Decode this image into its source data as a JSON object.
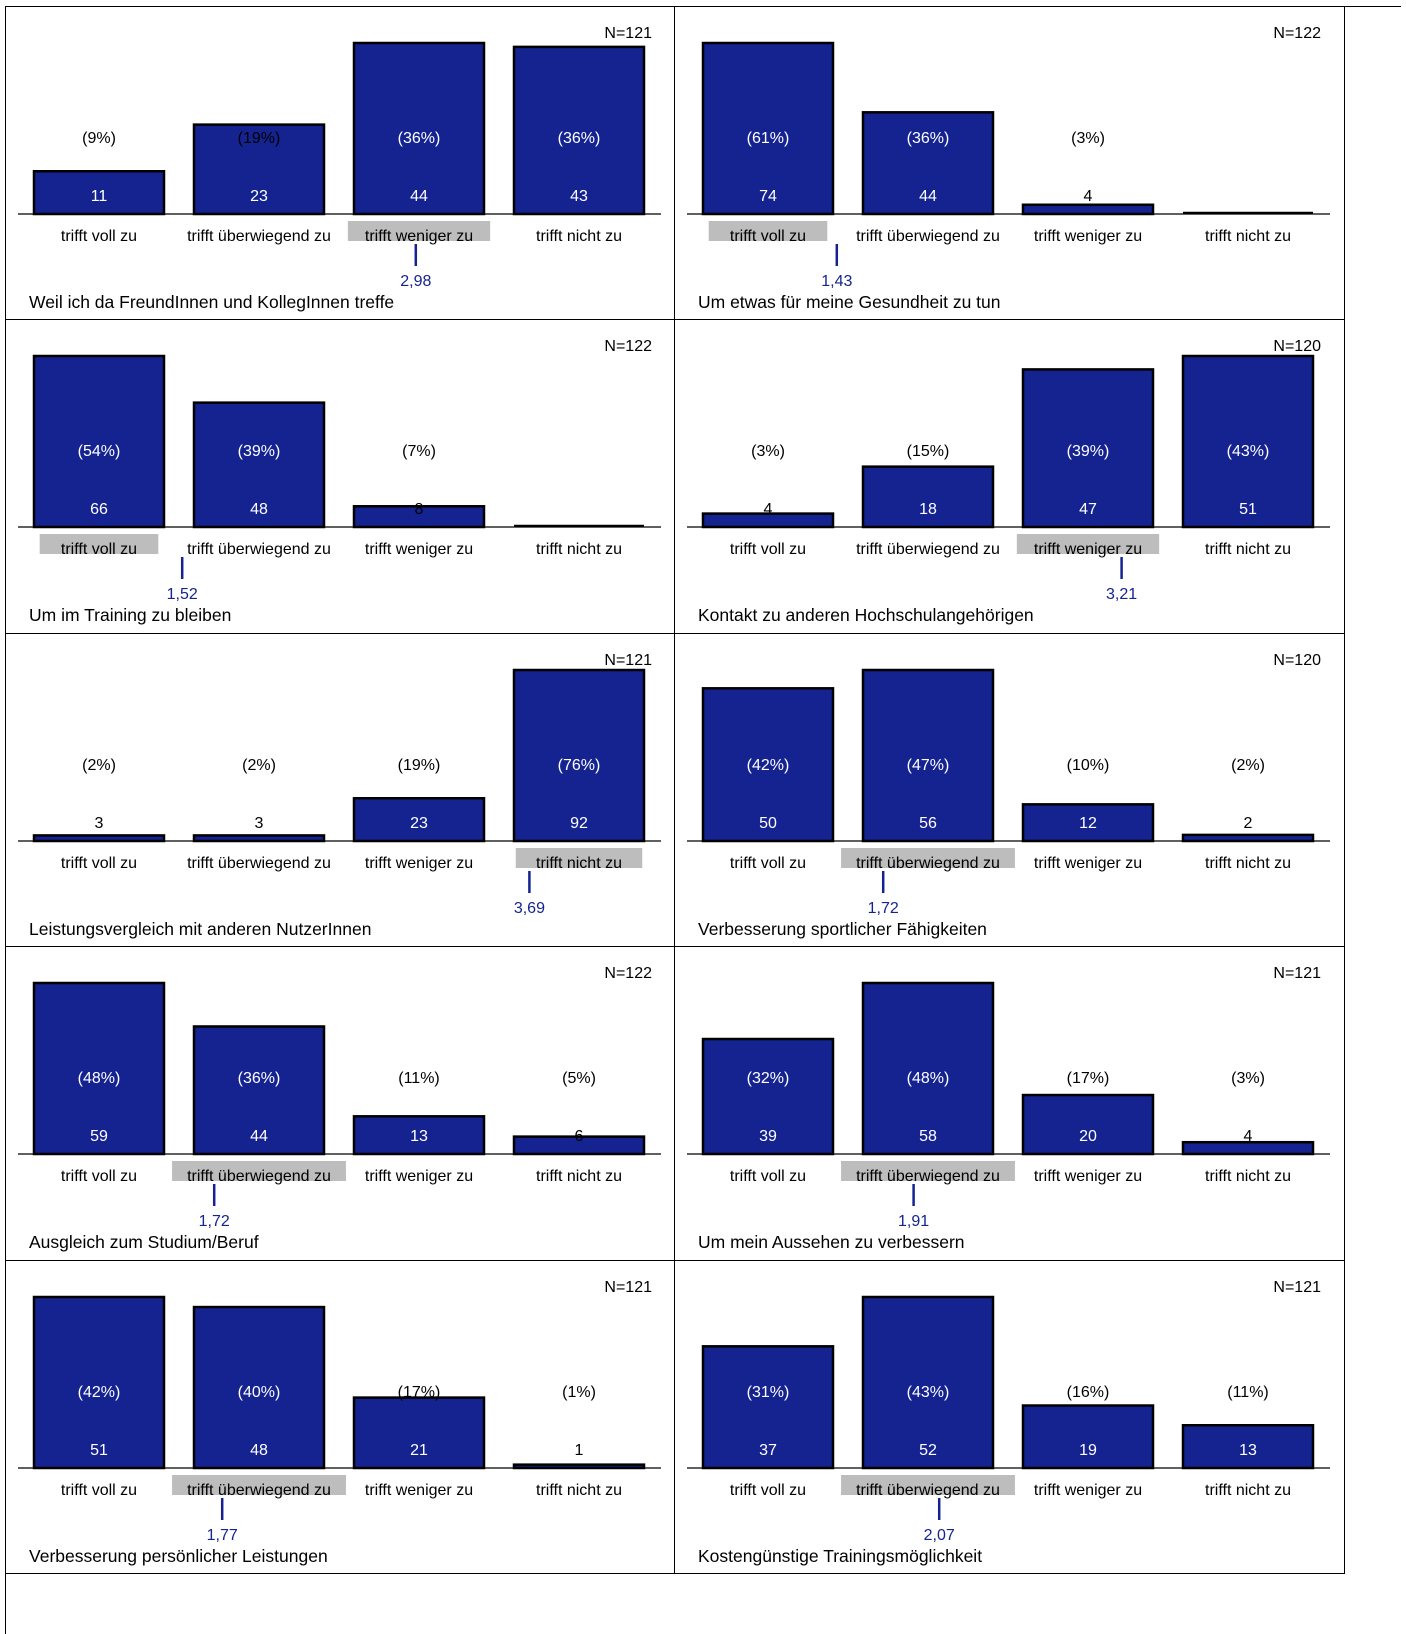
{
  "colors": {
    "bar": "#152391",
    "bar_stroke": "#000000",
    "mean_line": "#152391",
    "highlight": "#bdbdbd",
    "label_inside": "#ffffff",
    "label_outside": "#000000"
  },
  "chart_data": [
    {
      "type": "bar",
      "title": "Weil ich da FreundInnen und KollegInnen treffe",
      "n_label": "N=121",
      "categories": [
        "trifft voll zu",
        "trifft überwiegend zu",
        "trifft weniger zu",
        "trifft nicht zu"
      ],
      "values": [
        11,
        23,
        44,
        43
      ],
      "percent_labels": [
        "(9%)",
        "(19%)",
        "(36%)",
        "(36%)"
      ],
      "mean": 2.98,
      "mean_label": "2,98",
      "highlight_category": 2
    },
    {
      "type": "bar",
      "title": "Um etwas für meine Gesundheit zu tun",
      "n_label": "N=122",
      "categories": [
        "trifft voll zu",
        "trifft überwiegend zu",
        "trifft weniger zu",
        "trifft nicht zu"
      ],
      "values": [
        74,
        44,
        4,
        0
      ],
      "percent_labels": [
        "(61%)",
        "(36%)",
        "(3%)",
        ""
      ],
      "mean": 1.43,
      "mean_label": "1,43",
      "highlight_category": 0
    },
    {
      "type": "bar",
      "title": "Um im Training zu bleiben",
      "n_label": "N=122",
      "categories": [
        "trifft voll zu",
        "trifft überwiegend zu",
        "trifft weniger zu",
        "trifft nicht zu"
      ],
      "values": [
        66,
        48,
        8,
        0
      ],
      "percent_labels": [
        "(54%)",
        "(39%)",
        "(7%)",
        ""
      ],
      "mean": 1.52,
      "mean_label": "1,52",
      "highlight_category": 0
    },
    {
      "type": "bar",
      "title": "Kontakt zu anderen Hochschulangehörigen",
      "n_label": "N=120",
      "categories": [
        "trifft voll zu",
        "trifft überwiegend zu",
        "trifft weniger zu",
        "trifft nicht zu"
      ],
      "values": [
        4,
        18,
        47,
        51
      ],
      "percent_labels": [
        "(3%)",
        "(15%)",
        "(39%)",
        "(43%)"
      ],
      "mean": 3.21,
      "mean_label": "3,21",
      "highlight_category": 2
    },
    {
      "type": "bar",
      "title": "Leistungsvergleich mit anderen NutzerInnen",
      "n_label": "N=121",
      "categories": [
        "trifft voll zu",
        "trifft überwiegend zu",
        "trifft weniger zu",
        "trifft nicht zu"
      ],
      "values": [
        3,
        3,
        23,
        92
      ],
      "percent_labels": [
        "(2%)",
        "(2%)",
        "(19%)",
        "(76%)"
      ],
      "mean": 3.69,
      "mean_label": "3,69",
      "highlight_category": 3
    },
    {
      "type": "bar",
      "title": "Verbesserung sportlicher Fähigkeiten",
      "n_label": "N=120",
      "categories": [
        "trifft voll zu",
        "trifft überwiegend zu",
        "trifft weniger zu",
        "trifft nicht zu"
      ],
      "values": [
        50,
        56,
        12,
        2
      ],
      "percent_labels": [
        "(42%)",
        "(47%)",
        "(10%)",
        "(2%)"
      ],
      "mean": 1.72,
      "mean_label": "1,72",
      "highlight_category": 1
    },
    {
      "type": "bar",
      "title": "Ausgleich zum Studium/Beruf",
      "n_label": "N=122",
      "categories": [
        "trifft voll zu",
        "trifft überwiegend zu",
        "trifft weniger zu",
        "trifft nicht zu"
      ],
      "values": [
        59,
        44,
        13,
        6
      ],
      "percent_labels": [
        "(48%)",
        "(36%)",
        "(11%)",
        "(5%)"
      ],
      "mean": 1.72,
      "mean_label": "1,72",
      "highlight_category": 1
    },
    {
      "type": "bar",
      "title": "Um mein Aussehen zu verbessern",
      "n_label": "N=121",
      "categories": [
        "trifft voll zu",
        "trifft überwiegend zu",
        "trifft weniger zu",
        "trifft nicht zu"
      ],
      "values": [
        39,
        58,
        20,
        4
      ],
      "percent_labels": [
        "(32%)",
        "(48%)",
        "(17%)",
        "(3%)"
      ],
      "mean": 1.91,
      "mean_label": "1,91",
      "highlight_category": 1
    },
    {
      "type": "bar",
      "title": "Verbesserung persönlicher Leistungen",
      "n_label": "N=121",
      "categories": [
        "trifft voll zu",
        "trifft überwiegend zu",
        "trifft weniger zu",
        "trifft nicht zu"
      ],
      "values": [
        51,
        48,
        21,
        1
      ],
      "percent_labels": [
        "(42%)",
        "(40%)",
        "(17%)",
        "(1%)"
      ],
      "mean": 1.77,
      "mean_label": "1,77",
      "highlight_category": 1
    },
    {
      "type": "bar",
      "title": "Kostengünstige Trainingsmöglichkeit",
      "n_label": "N=121",
      "categories": [
        "trifft voll zu",
        "trifft überwiegend zu",
        "trifft weniger zu",
        "trifft nicht zu"
      ],
      "values": [
        37,
        52,
        19,
        13
      ],
      "percent_labels": [
        "(31%)",
        "(43%)",
        "(16%)",
        "(11%)"
      ],
      "mean": 2.07,
      "mean_label": "2,07",
      "highlight_category": 1
    }
  ]
}
